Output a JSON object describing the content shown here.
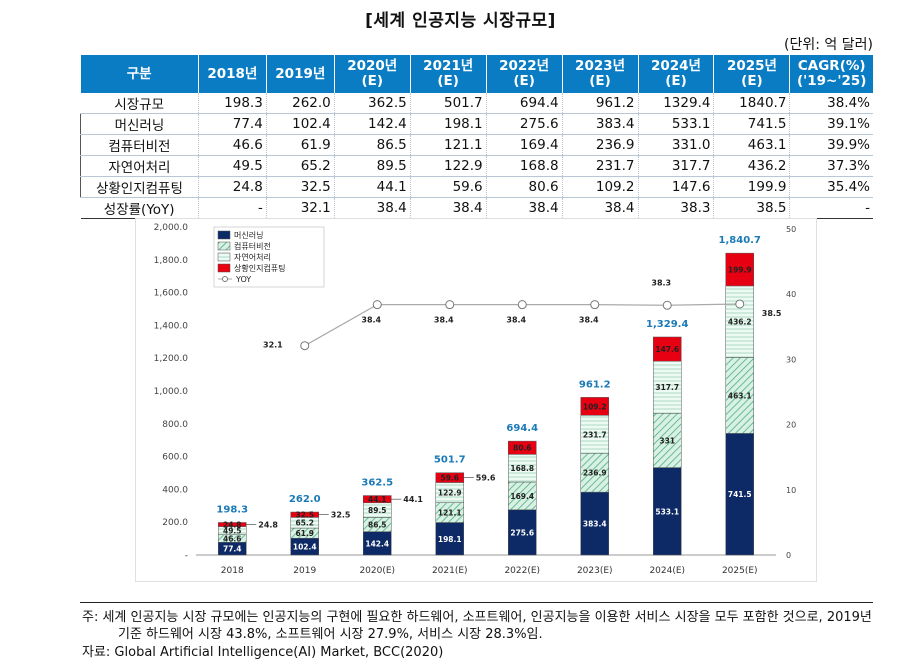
{
  "title": "[세계 인공지능 시장규모]",
  "unit": "(단위: 억 달러)",
  "table": {
    "headers": [
      "구분",
      "2018년",
      "2019년",
      "2020년(E)",
      "2021년(E)",
      "2022년(E)",
      "2023년(E)",
      "2024년(E)",
      "2025년(E)",
      "CAGR(%)\n('19~'25)"
    ],
    "rows": [
      {
        "label": "시장규모",
        "values": [
          "198.3",
          "262.0",
          "362.5",
          "501.7",
          "694.4",
          "961.2",
          "1329.4",
          "1840.7",
          "38.4%"
        ]
      },
      {
        "label": "머신러닝",
        "values": [
          "77.4",
          "102.4",
          "142.4",
          "198.1",
          "275.6",
          "383.4",
          "533.1",
          "741.5",
          "39.1%"
        ]
      },
      {
        "label": "컴퓨터비전",
        "values": [
          "46.6",
          "61.9",
          "86.5",
          "121.1",
          "169.4",
          "236.9",
          "331.0",
          "463.1",
          "39.9%"
        ]
      },
      {
        "label": "자연어처리",
        "values": [
          "49.5",
          "65.2",
          "89.5",
          "122.9",
          "168.8",
          "231.7",
          "317.7",
          "436.2",
          "37.3%"
        ]
      },
      {
        "label": "상황인지컴퓨팅",
        "values": [
          "24.8",
          "32.5",
          "44.1",
          "59.6",
          "80.6",
          "109.2",
          "147.6",
          "199.9",
          "35.4%"
        ]
      },
      {
        "label": "성장률(YoY)",
        "values": [
          "-",
          "32.1",
          "38.4",
          "38.4",
          "38.4",
          "38.4",
          "38.3",
          "38.5",
          "-"
        ]
      }
    ]
  },
  "chart_data": {
    "type": "bar",
    "stacked": true,
    "categories": [
      "2018",
      "2019",
      "2020(E)",
      "2021(E)",
      "2022(E)",
      "2023(E)",
      "2024(E)",
      "2025(E)"
    ],
    "series": [
      {
        "name": "머신러닝",
        "values": [
          77.4,
          102.4,
          142.4,
          198.1,
          275.6,
          383.4,
          533.1,
          741.5
        ],
        "color": "#0d2a66"
      },
      {
        "name": "컴퓨터비전",
        "values": [
          46.6,
          61.9,
          86.5,
          121.1,
          169.4,
          236.9,
          331.0,
          463.1
        ],
        "color": "#9cd9b8"
      },
      {
        "name": "자연어처리",
        "values": [
          49.5,
          65.2,
          89.5,
          122.9,
          168.8,
          231.7,
          317.7,
          436.2
        ],
        "color": "#e4f6ee"
      },
      {
        "name": "상황인지컴퓨팅",
        "values": [
          24.8,
          32.5,
          44.1,
          59.6,
          80.6,
          109.2,
          147.6,
          199.9
        ],
        "color": "#e60012"
      }
    ],
    "totals": [
      "198.3",
      "262.0",
      "362.5",
      "501.7",
      "694.4",
      "961.2",
      "1,329.4",
      "1,840.7"
    ],
    "yoy": {
      "name": "YOY",
      "values": [
        null,
        32.1,
        38.4,
        38.4,
        38.4,
        38.4,
        38.3,
        38.5
      ]
    },
    "y_left": {
      "ticks": [
        "2,000.0",
        "1,800.0",
        "1,600.0",
        "1,400.0",
        "1,200.0",
        "1,000.0",
        "800.0",
        "600.0",
        "400.0",
        "200.0",
        "-"
      ],
      "ylim": [
        0,
        2000
      ]
    },
    "y_right": {
      "ticks": [
        "50",
        "40",
        "30",
        "20",
        "10",
        "0"
      ],
      "ylim": [
        0,
        50
      ]
    }
  },
  "notes": {
    "note1a": "주:  세계 인공지능 시장 규모에는 인공지능의 구현에 필요한 하드웨어, 소프트웨어, 인공지능을 이용한 서비스 시장을 모두 포함한 것으로, 2019년",
    "note1b": "기준 하드웨어 시장 43.8%, 소프트웨어 시장 27.9%, 서비스 시장 28.3%임.",
    "source": "자료: Global Artificial Intelligence(AI) Market, BCC(2020)"
  }
}
